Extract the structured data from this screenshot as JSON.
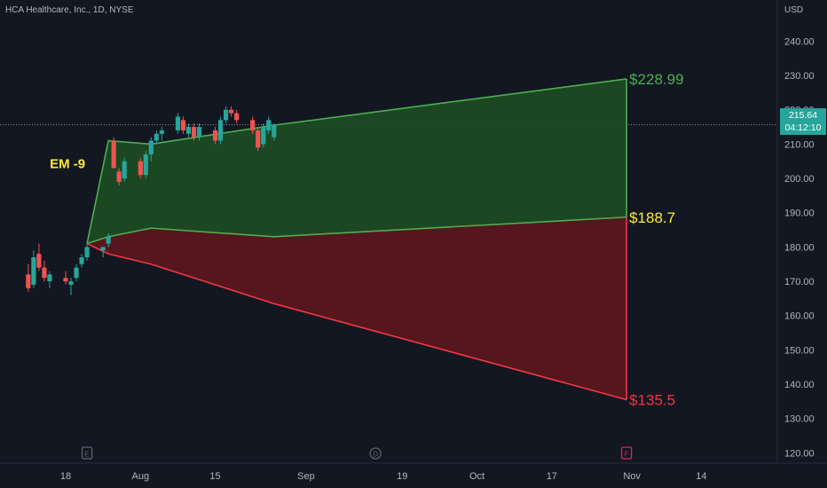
{
  "header": {
    "symbol_title": "HCA Healthcare, Inc., 1D, NYSE",
    "currency": "USD"
  },
  "colors": {
    "background": "#131722",
    "up": "#26a69a",
    "down": "#ef5350",
    "upper_zone": "#1c4a24",
    "lower_zone": "#5a161d",
    "green_line": "#4caf50",
    "red_line": "#f23645",
    "label_yellow": "#ffeb3b"
  },
  "price_tag": {
    "price": "215.64",
    "countdown": "04:12:10"
  },
  "chart_data": {
    "type": "candlestick",
    "ylim": [
      117,
      252
    ],
    "y_ticks": [
      120,
      130,
      140,
      150,
      160,
      170,
      180,
      190,
      200,
      210,
      220,
      230,
      240
    ],
    "y_tick_labels": [
      "120.00",
      "130.00",
      "140.00",
      "150.00",
      "160.00",
      "170.00",
      "180.00",
      "190.00",
      "200.00",
      "210.00",
      "220.00",
      "230.00",
      "240.00"
    ],
    "x_ticks": [
      {
        "date": "2022-07-18",
        "label": "18"
      },
      {
        "date": "2022-08-01",
        "label": "Aug"
      },
      {
        "date": "2022-08-15",
        "label": "15"
      },
      {
        "date": "2022-09-01",
        "label": "Sep"
      },
      {
        "date": "2022-09-19",
        "label": "19"
      },
      {
        "date": "2022-10-03",
        "label": "Oct"
      },
      {
        "date": "2022-10-17",
        "label": "17"
      },
      {
        "date": "2022-11-01",
        "label": "Nov"
      },
      {
        "date": "2022-11-14",
        "label": "14"
      }
    ],
    "events": [
      {
        "date": "2022-07-22",
        "label": "E"
      },
      {
        "date": "2022-09-14",
        "label": "D"
      },
      {
        "date": "2022-10-31",
        "label": "F"
      }
    ],
    "current_price": 215.64,
    "candles": [
      {
        "date": "2022-07-11",
        "o": 172,
        "h": 175,
        "l": 167,
        "c": 168
      },
      {
        "date": "2022-07-12",
        "o": 169,
        "h": 179,
        "l": 168,
        "c": 177
      },
      {
        "date": "2022-07-13",
        "o": 178,
        "h": 181,
        "l": 173,
        "c": 174
      },
      {
        "date": "2022-07-14",
        "o": 174,
        "h": 176,
        "l": 170,
        "c": 171
      },
      {
        "date": "2022-07-15",
        "o": 170,
        "h": 173,
        "l": 168,
        "c": 172
      },
      {
        "date": "2022-07-18",
        "o": 171,
        "h": 173,
        "l": 169,
        "c": 170
      },
      {
        "date": "2022-07-19",
        "o": 169,
        "h": 171,
        "l": 166,
        "c": 170
      },
      {
        "date": "2022-07-20",
        "o": 171,
        "h": 175,
        "l": 170,
        "c": 174
      },
      {
        "date": "2022-07-21",
        "o": 175,
        "h": 178,
        "l": 174,
        "c": 177
      },
      {
        "date": "2022-07-22",
        "o": 177,
        "h": 181,
        "l": 176,
        "c": 180
      },
      {
        "date": "2022-07-25",
        "o": 179,
        "h": 180,
        "l": 177,
        "c": 180
      },
      {
        "date": "2022-07-26",
        "o": 181,
        "h": 184,
        "l": 180,
        "c": 183
      },
      {
        "date": "2022-07-27",
        "o": 211,
        "h": 212,
        "l": 203,
        "c": 203
      },
      {
        "date": "2022-07-28",
        "o": 202,
        "h": 203,
        "l": 198,
        "c": 199
      },
      {
        "date": "2022-07-29",
        "o": 200,
        "h": 206,
        "l": 199,
        "c": 205
      },
      {
        "date": "2022-08-01",
        "o": 205,
        "h": 206,
        "l": 200,
        "c": 201
      },
      {
        "date": "2022-08-02",
        "o": 201,
        "h": 208,
        "l": 200,
        "c": 207
      },
      {
        "date": "2022-08-03",
        "o": 207,
        "h": 212,
        "l": 205,
        "c": 211
      },
      {
        "date": "2022-08-04",
        "o": 211,
        "h": 214,
        "l": 210,
        "c": 213
      },
      {
        "date": "2022-08-05",
        "o": 213,
        "h": 215,
        "l": 211,
        "c": 214
      },
      {
        "date": "2022-08-08",
        "o": 214,
        "h": 219,
        "l": 213,
        "c": 218
      },
      {
        "date": "2022-08-09",
        "o": 217,
        "h": 218,
        "l": 213,
        "c": 214
      },
      {
        "date": "2022-08-10",
        "o": 213,
        "h": 216,
        "l": 212,
        "c": 215
      },
      {
        "date": "2022-08-11",
        "o": 215,
        "h": 216,
        "l": 211,
        "c": 212
      },
      {
        "date": "2022-08-12",
        "o": 212,
        "h": 216,
        "l": 211,
        "c": 215
      },
      {
        "date": "2022-08-15",
        "o": 214,
        "h": 215,
        "l": 210,
        "c": 211
      },
      {
        "date": "2022-08-16",
        "o": 211,
        "h": 218,
        "l": 210,
        "c": 217
      },
      {
        "date": "2022-08-17",
        "o": 217,
        "h": 221,
        "l": 216,
        "c": 220
      },
      {
        "date": "2022-08-18",
        "o": 220,
        "h": 221,
        "l": 218,
        "c": 219
      },
      {
        "date": "2022-08-19",
        "o": 219,
        "h": 220,
        "l": 216,
        "c": 217
      },
      {
        "date": "2022-08-22",
        "o": 217,
        "h": 218,
        "l": 213,
        "c": 214
      },
      {
        "date": "2022-08-23",
        "o": 214,
        "h": 215,
        "l": 208,
        "c": 209
      },
      {
        "date": "2022-08-24",
        "o": 210,
        "h": 216,
        "l": 209,
        "c": 215
      },
      {
        "date": "2022-08-25",
        "o": 214,
        "h": 218,
        "l": 213,
        "c": 217
      },
      {
        "date": "2022-08-26",
        "o": 212,
        "h": 216,
        "l": 211,
        "c": 215.64
      }
    ],
    "expected_move": {
      "label": "EM -9",
      "upper_line": [
        [
          "2022-07-22",
          181
        ],
        [
          "2022-07-26",
          211
        ],
        [
          "2022-08-03",
          210
        ],
        [
          "2022-08-26",
          215.5
        ],
        [
          "2022-10-31",
          228.99
        ]
      ],
      "mid_line": [
        [
          "2022-07-22",
          181
        ],
        [
          "2022-07-26",
          183
        ],
        [
          "2022-08-03",
          185.5
        ],
        [
          "2022-08-26",
          183
        ],
        [
          "2022-10-31",
          188.7
        ]
      ],
      "lower_line": [
        [
          "2022-07-22",
          181
        ],
        [
          "2022-07-26",
          178
        ],
        [
          "2022-08-03",
          175
        ],
        [
          "2022-08-26",
          163.5
        ],
        [
          "2022-10-31",
          135.5
        ]
      ],
      "targets": [
        {
          "value": 228.99,
          "label": "$228.99",
          "color": "#4caf50"
        },
        {
          "value": 188.7,
          "label": "$188.7",
          "color": "#ffeb3b"
        },
        {
          "value": 135.5,
          "label": "$135.5",
          "color": "#f23645"
        }
      ]
    }
  }
}
